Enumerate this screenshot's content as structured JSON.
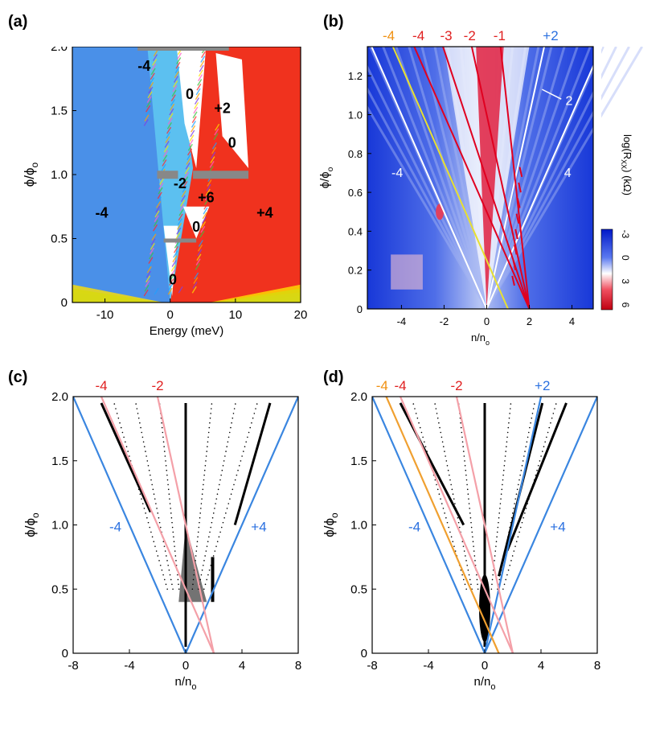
{
  "panels": {
    "a": {
      "letter": "(a)",
      "xlabel": "Energy (meV)",
      "ylabel": "ϕ/ϕ",
      "ylabel_sub": "o",
      "xticks": [
        "-10",
        "0",
        "10",
        "20"
      ],
      "yticks": [
        "0",
        "0.5",
        "1.0",
        "1.5",
        "2.0"
      ],
      "region_labels": [
        "-4",
        "0",
        "+2",
        "0",
        "-2",
        "+6",
        "-4",
        "+4",
        "0",
        "0"
      ]
    },
    "b": {
      "letter": "(b)",
      "xlabel": "n/n",
      "xlabel_sub": "o",
      "ylabel": "ϕ/ϕ",
      "ylabel_sub": "o",
      "xticks": [
        "-4",
        "-2",
        "0",
        "2",
        "4"
      ],
      "yticks": [
        "0",
        "0.2",
        "0.4",
        "0.6",
        "0.8",
        "1.0",
        "1.2"
      ],
      "top_labels": [
        "-4",
        "-4",
        "-3",
        "-2",
        "-1",
        "+2"
      ],
      "line_labels": [
        "2",
        "-4",
        "4"
      ],
      "colorbar_title": "log(R",
      "colorbar_title_sub": "XX",
      "colorbar_title_end": ") (kΩ)",
      "colorbar_ticks": [
        "-3",
        "0",
        "3",
        "6"
      ]
    },
    "c": {
      "letter": "(c)",
      "xlabel": "n/n",
      "xlabel_sub": "o",
      "ylabel": "ϕ/ϕ",
      "ylabel_sub": "o",
      "xticks": [
        "-8",
        "-4",
        "0",
        "4",
        "8"
      ],
      "yticks": [
        "0",
        "0.5",
        "1.0",
        "1.5",
        "2.0"
      ],
      "top_labels": [
        "-4",
        "-2"
      ],
      "side_labels": [
        "-4",
        "+4"
      ]
    },
    "d": {
      "letter": "(d)",
      "xlabel": "n/n",
      "xlabel_sub": "o",
      "ylabel": "ϕ/ϕ",
      "ylabel_sub": "o",
      "xticks": [
        "-8",
        "-4",
        "0",
        "4",
        "8"
      ],
      "yticks": [
        "0",
        "0.5",
        "1.0",
        "1.5",
        "2.0"
      ],
      "top_labels": [
        "-4",
        "-4",
        "-2",
        "+2"
      ],
      "side_labels": [
        "-4",
        "+4"
      ]
    }
  },
  "colors": {
    "blue_region": "#4a90e8",
    "light_blue_region": "#5cc0f0",
    "red_region": "#f0321e",
    "gray_bar": "#888888",
    "wannier_blue": "#3a86e0",
    "wannier_pink": "#f4a0a8",
    "wannier_orange": "#f0a030",
    "label_red": "#e02020",
    "label_orange": "#f09010",
    "label_blue": "#2a70e0",
    "yellow_line": "#e8e030"
  },
  "chart_data": [
    {
      "panel": "a",
      "type": "heatmap",
      "title": "",
      "xlabel": "Energy (meV)",
      "ylabel": "ϕ/ϕo",
      "xlim": [
        -15,
        20
      ],
      "ylim": [
        0,
        2.0
      ],
      "annotations": [
        {
          "text": "-4",
          "x": -4,
          "y": 1.85
        },
        {
          "text": "0",
          "x": 3,
          "y": 1.63
        },
        {
          "text": "+2",
          "x": 8,
          "y": 1.52
        },
        {
          "text": "0",
          "x": 9.5,
          "y": 1.25
        },
        {
          "text": "-2",
          "x": 1.5,
          "y": 0.93
        },
        {
          "text": "+6",
          "x": 5.5,
          "y": 0.82
        },
        {
          "text": "-4",
          "x": -10.5,
          "y": 0.7
        },
        {
          "text": "+4",
          "x": 14.5,
          "y": 0.7
        },
        {
          "text": "0",
          "x": 4,
          "y": 0.59
        },
        {
          "text": "0",
          "x": 0.4,
          "y": 0.18
        }
      ]
    },
    {
      "panel": "b",
      "type": "heatmap",
      "title": "",
      "xlabel": "n/no",
      "ylabel": "ϕ/ϕo",
      "xlim": [
        -5.6,
        5.0
      ],
      "ylim": [
        0,
        1.35
      ],
      "colorbar": {
        "label": "log(RXX) (kΩ)",
        "ticks": [
          -3,
          0,
          3,
          6
        ]
      },
      "lines": [
        {
          "name": "-4",
          "color": "white",
          "x0": 0,
          "slope": -4
        },
        {
          "name": "4",
          "color": "white",
          "x0": 0,
          "slope": 4
        },
        {
          "name": "2",
          "color": "white",
          "x0": 0,
          "slope": 2
        },
        {
          "name": "-4",
          "color": "yellow",
          "x0": 1,
          "slope": -4
        },
        {
          "name": "-4",
          "color": "red",
          "x0": 2,
          "slope": -4
        },
        {
          "name": "-3",
          "color": "red",
          "x0": 2,
          "slope": -3
        },
        {
          "name": "-2",
          "color": "red",
          "x0": 2,
          "slope": -2
        },
        {
          "name": "-1",
          "color": "red",
          "x0": 2,
          "slope": -1
        }
      ]
    },
    {
      "panel": "c",
      "type": "scatter",
      "title": "",
      "xlabel": "n/no",
      "ylabel": "ϕ/ϕo",
      "xlim": [
        -8,
        8
      ],
      "ylim": [
        0,
        2.0
      ],
      "lines": [
        {
          "name": "-4",
          "color": "blue",
          "x0": 0,
          "slope": -4
        },
        {
          "name": "+4",
          "color": "blue",
          "x0": 0,
          "slope": 4
        },
        {
          "name": "-4",
          "color": "pink",
          "x0": 2,
          "slope": -4
        },
        {
          "name": "-2",
          "color": "pink",
          "x0": 2,
          "slope": -2
        }
      ]
    },
    {
      "panel": "d",
      "type": "scatter",
      "title": "",
      "xlabel": "n/no",
      "ylabel": "ϕ/ϕo",
      "xlim": [
        -8,
        8
      ],
      "ylim": [
        0,
        2.0
      ],
      "lines": [
        {
          "name": "-4",
          "color": "blue",
          "x0": 0,
          "slope": -4
        },
        {
          "name": "+4",
          "color": "blue",
          "x0": 0,
          "slope": 4
        },
        {
          "name": "+2",
          "color": "blue",
          "x0": 0,
          "slope": 2
        },
        {
          "name": "-4",
          "color": "orange",
          "x0": 1,
          "slope": -4
        },
        {
          "name": "-4",
          "color": "pink",
          "x0": 2,
          "slope": -4
        },
        {
          "name": "-2",
          "color": "pink",
          "x0": 2,
          "slope": -2
        }
      ]
    }
  ]
}
